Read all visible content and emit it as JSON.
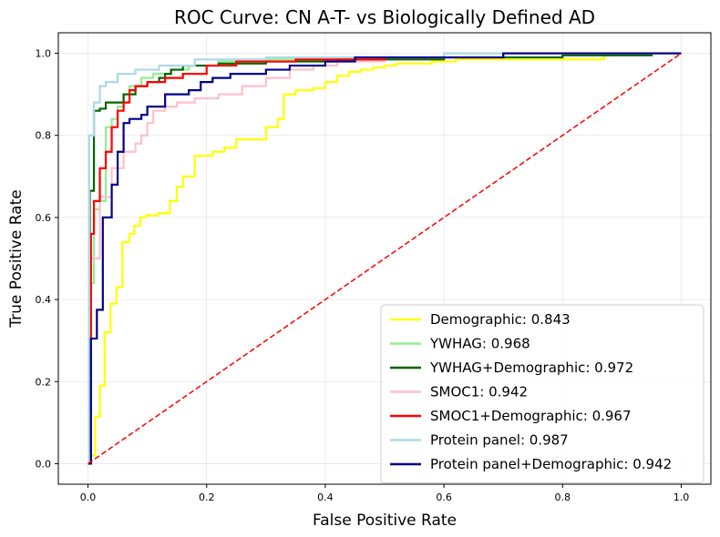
{
  "chart_data": {
    "type": "line",
    "title": "ROC Curve: CN A-T- vs Biologically Defined AD",
    "xlabel": "False Positive Rate",
    "ylabel": "True Positive Rate",
    "xlim": [
      -0.05,
      1.05
    ],
    "ylim": [
      -0.05,
      1.05
    ],
    "xticks": [
      "0.0",
      "0.2",
      "0.4",
      "0.6",
      "0.8",
      "1.0"
    ],
    "yticks": [
      "0.0",
      "0.2",
      "0.4",
      "0.6",
      "0.8",
      "1.0"
    ],
    "grid": true,
    "legend_position": "lower right",
    "series": [
      {
        "name": "Demographic: 0.843",
        "color": "#ffff00",
        "x": [
          0.0,
          0.005,
          0.005,
          0.012,
          0.012,
          0.02,
          0.02,
          0.028,
          0.028,
          0.038,
          0.038,
          0.048,
          0.048,
          0.058,
          0.058,
          0.07,
          0.07,
          0.078,
          0.078,
          0.088,
          0.088,
          0.098,
          0.098,
          0.118,
          0.118,
          0.138,
          0.138,
          0.15,
          0.15,
          0.16,
          0.16,
          0.18,
          0.18,
          0.21,
          0.21,
          0.23,
          0.23,
          0.25,
          0.25,
          0.3,
          0.3,
          0.32,
          0.32,
          0.33,
          0.33,
          0.35,
          0.35,
          0.38,
          0.38,
          0.4,
          0.4,
          0.42,
          0.42,
          0.44,
          0.44,
          0.46,
          0.46,
          0.48,
          0.48,
          0.5,
          0.5,
          0.52,
          0.52,
          0.55,
          0.55,
          0.58,
          0.58,
          0.62,
          0.62,
          0.7,
          0.7,
          0.78,
          0.78,
          0.87,
          0.87,
          0.9,
          0.9,
          1.0
        ],
        "y": [
          0.0,
          0.0,
          0.02,
          0.02,
          0.115,
          0.115,
          0.19,
          0.19,
          0.32,
          0.32,
          0.39,
          0.39,
          0.43,
          0.43,
          0.54,
          0.54,
          0.56,
          0.56,
          0.58,
          0.58,
          0.6,
          0.6,
          0.605,
          0.605,
          0.61,
          0.61,
          0.64,
          0.64,
          0.675,
          0.675,
          0.7,
          0.7,
          0.75,
          0.75,
          0.76,
          0.76,
          0.77,
          0.77,
          0.79,
          0.79,
          0.82,
          0.82,
          0.84,
          0.84,
          0.9,
          0.9,
          0.91,
          0.91,
          0.915,
          0.915,
          0.93,
          0.93,
          0.945,
          0.945,
          0.955,
          0.955,
          0.96,
          0.96,
          0.965,
          0.965,
          0.97,
          0.97,
          0.975,
          0.975,
          0.975,
          0.975,
          0.98,
          0.98,
          0.985,
          0.985,
          0.985,
          0.985,
          0.985,
          0.985,
          0.995,
          0.995,
          1.0,
          1.0
        ]
      },
      {
        "name": "YWHAG: 0.968",
        "color": "#90ee90",
        "x": [
          0.0,
          0.005,
          0.005,
          0.01,
          0.01,
          0.02,
          0.02,
          0.03,
          0.03,
          0.04,
          0.04,
          0.05,
          0.05,
          0.06,
          0.06,
          0.07,
          0.07,
          0.09,
          0.09,
          0.11,
          0.11,
          0.14,
          0.14,
          0.17,
          0.17,
          0.22,
          0.22,
          0.3,
          0.3,
          0.45,
          0.45,
          0.6,
          0.6,
          1.0
        ],
        "y": [
          0.0,
          0.0,
          0.44,
          0.44,
          0.62,
          0.62,
          0.64,
          0.64,
          0.82,
          0.82,
          0.84,
          0.84,
          0.87,
          0.87,
          0.9,
          0.9,
          0.92,
          0.92,
          0.94,
          0.94,
          0.95,
          0.95,
          0.96,
          0.96,
          0.97,
          0.97,
          0.98,
          0.98,
          0.985,
          0.985,
          0.99,
          0.99,
          1.0,
          1.0
        ]
      },
      {
        "name": "YWHAG+Demographic: 0.972",
        "color": "#006400",
        "x": [
          0.0,
          0.003,
          0.003,
          0.01,
          0.01,
          0.02,
          0.02,
          0.03,
          0.03,
          0.06,
          0.06,
          0.08,
          0.08,
          0.1,
          0.1,
          0.12,
          0.12,
          0.13,
          0.13,
          0.14,
          0.14,
          0.16,
          0.16,
          0.22,
          0.22,
          0.3,
          0.3,
          0.42,
          0.42,
          0.6,
          0.6,
          0.8,
          0.8,
          0.95,
          0.95,
          1.0
        ],
        "y": [
          0.0,
          0.0,
          0.665,
          0.665,
          0.86,
          0.86,
          0.865,
          0.865,
          0.88,
          0.88,
          0.9,
          0.9,
          0.92,
          0.92,
          0.93,
          0.93,
          0.94,
          0.94,
          0.95,
          0.95,
          0.96,
          0.96,
          0.97,
          0.97,
          0.975,
          0.975,
          0.98,
          0.98,
          0.985,
          0.985,
          0.99,
          0.99,
          0.995,
          0.995,
          1.0,
          1.0
        ]
      },
      {
        "name": "SMOC1: 0.942",
        "color": "#ffc0cb",
        "x": [
          0.0,
          0.005,
          0.005,
          0.02,
          0.02,
          0.04,
          0.04,
          0.06,
          0.06,
          0.08,
          0.08,
          0.09,
          0.09,
          0.1,
          0.1,
          0.11,
          0.11,
          0.13,
          0.13,
          0.15,
          0.15,
          0.18,
          0.18,
          0.22,
          0.22,
          0.26,
          0.26,
          0.3,
          0.3,
          0.34,
          0.34,
          0.38,
          0.38,
          0.42,
          0.42,
          0.5,
          0.5,
          0.7,
          0.7,
          1.0
        ],
        "y": [
          0.0,
          0.0,
          0.5,
          0.5,
          0.65,
          0.65,
          0.72,
          0.72,
          0.76,
          0.76,
          0.78,
          0.78,
          0.8,
          0.8,
          0.83,
          0.83,
          0.86,
          0.86,
          0.87,
          0.87,
          0.88,
          0.88,
          0.89,
          0.89,
          0.9,
          0.9,
          0.92,
          0.92,
          0.94,
          0.94,
          0.96,
          0.96,
          0.97,
          0.97,
          0.98,
          0.98,
          0.99,
          0.99,
          1.0,
          1.0
        ]
      },
      {
        "name": "SMOC1+Demographic: 0.967",
        "color": "#ff0000",
        "x": [
          0.0,
          0.005,
          0.005,
          0.01,
          0.01,
          0.02,
          0.02,
          0.03,
          0.03,
          0.04,
          0.04,
          0.05,
          0.05,
          0.06,
          0.06,
          0.07,
          0.07,
          0.08,
          0.08,
          0.1,
          0.1,
          0.13,
          0.13,
          0.16,
          0.16,
          0.2,
          0.2,
          0.25,
          0.25,
          0.35,
          0.35,
          0.5,
          0.5,
          0.7,
          0.7,
          1.0
        ],
        "y": [
          0.0,
          0.0,
          0.56,
          0.56,
          0.64,
          0.64,
          0.72,
          0.72,
          0.76,
          0.76,
          0.82,
          0.82,
          0.86,
          0.86,
          0.88,
          0.88,
          0.91,
          0.91,
          0.92,
          0.92,
          0.93,
          0.93,
          0.94,
          0.94,
          0.95,
          0.95,
          0.97,
          0.97,
          0.98,
          0.98,
          0.985,
          0.985,
          0.99,
          0.99,
          1.0,
          1.0
        ]
      },
      {
        "name": "Protein panel: 0.987",
        "color": "#add8e6",
        "x": [
          0.0,
          0.002,
          0.002,
          0.01,
          0.01,
          0.02,
          0.02,
          0.03,
          0.03,
          0.05,
          0.05,
          0.08,
          0.08,
          0.12,
          0.12,
          0.18,
          0.18,
          0.3,
          0.3,
          0.6,
          0.6,
          1.0
        ],
        "y": [
          0.0,
          0.0,
          0.8,
          0.8,
          0.88,
          0.88,
          0.92,
          0.92,
          0.93,
          0.93,
          0.95,
          0.95,
          0.96,
          0.96,
          0.97,
          0.97,
          0.985,
          0.985,
          0.99,
          0.99,
          1.0,
          1.0
        ]
      },
      {
        "name": "Protein panel+Demographic: 0.942",
        "color": "#00008b",
        "x": [
          0.0,
          0.005,
          0.005,
          0.015,
          0.015,
          0.025,
          0.025,
          0.04,
          0.04,
          0.05,
          0.05,
          0.06,
          0.06,
          0.07,
          0.07,
          0.09,
          0.09,
          0.1,
          0.1,
          0.13,
          0.13,
          0.17,
          0.17,
          0.19,
          0.19,
          0.21,
          0.21,
          0.24,
          0.24,
          0.3,
          0.3,
          0.34,
          0.34,
          0.4,
          0.4,
          0.45,
          0.45,
          0.7,
          0.7,
          1.0
        ],
        "y": [
          0.0,
          0.0,
          0.305,
          0.305,
          0.375,
          0.375,
          0.6,
          0.6,
          0.68,
          0.68,
          0.76,
          0.76,
          0.83,
          0.83,
          0.84,
          0.84,
          0.85,
          0.85,
          0.87,
          0.87,
          0.9,
          0.9,
          0.91,
          0.91,
          0.93,
          0.93,
          0.94,
          0.94,
          0.95,
          0.95,
          0.96,
          0.96,
          0.97,
          0.97,
          0.98,
          0.98,
          0.99,
          0.99,
          1.0,
          1.0
        ]
      },
      {
        "name": "",
        "color": "#ff0000",
        "dashed": true,
        "x": [
          0.0,
          1.0
        ],
        "y": [
          0.0,
          1.0
        ]
      }
    ]
  }
}
